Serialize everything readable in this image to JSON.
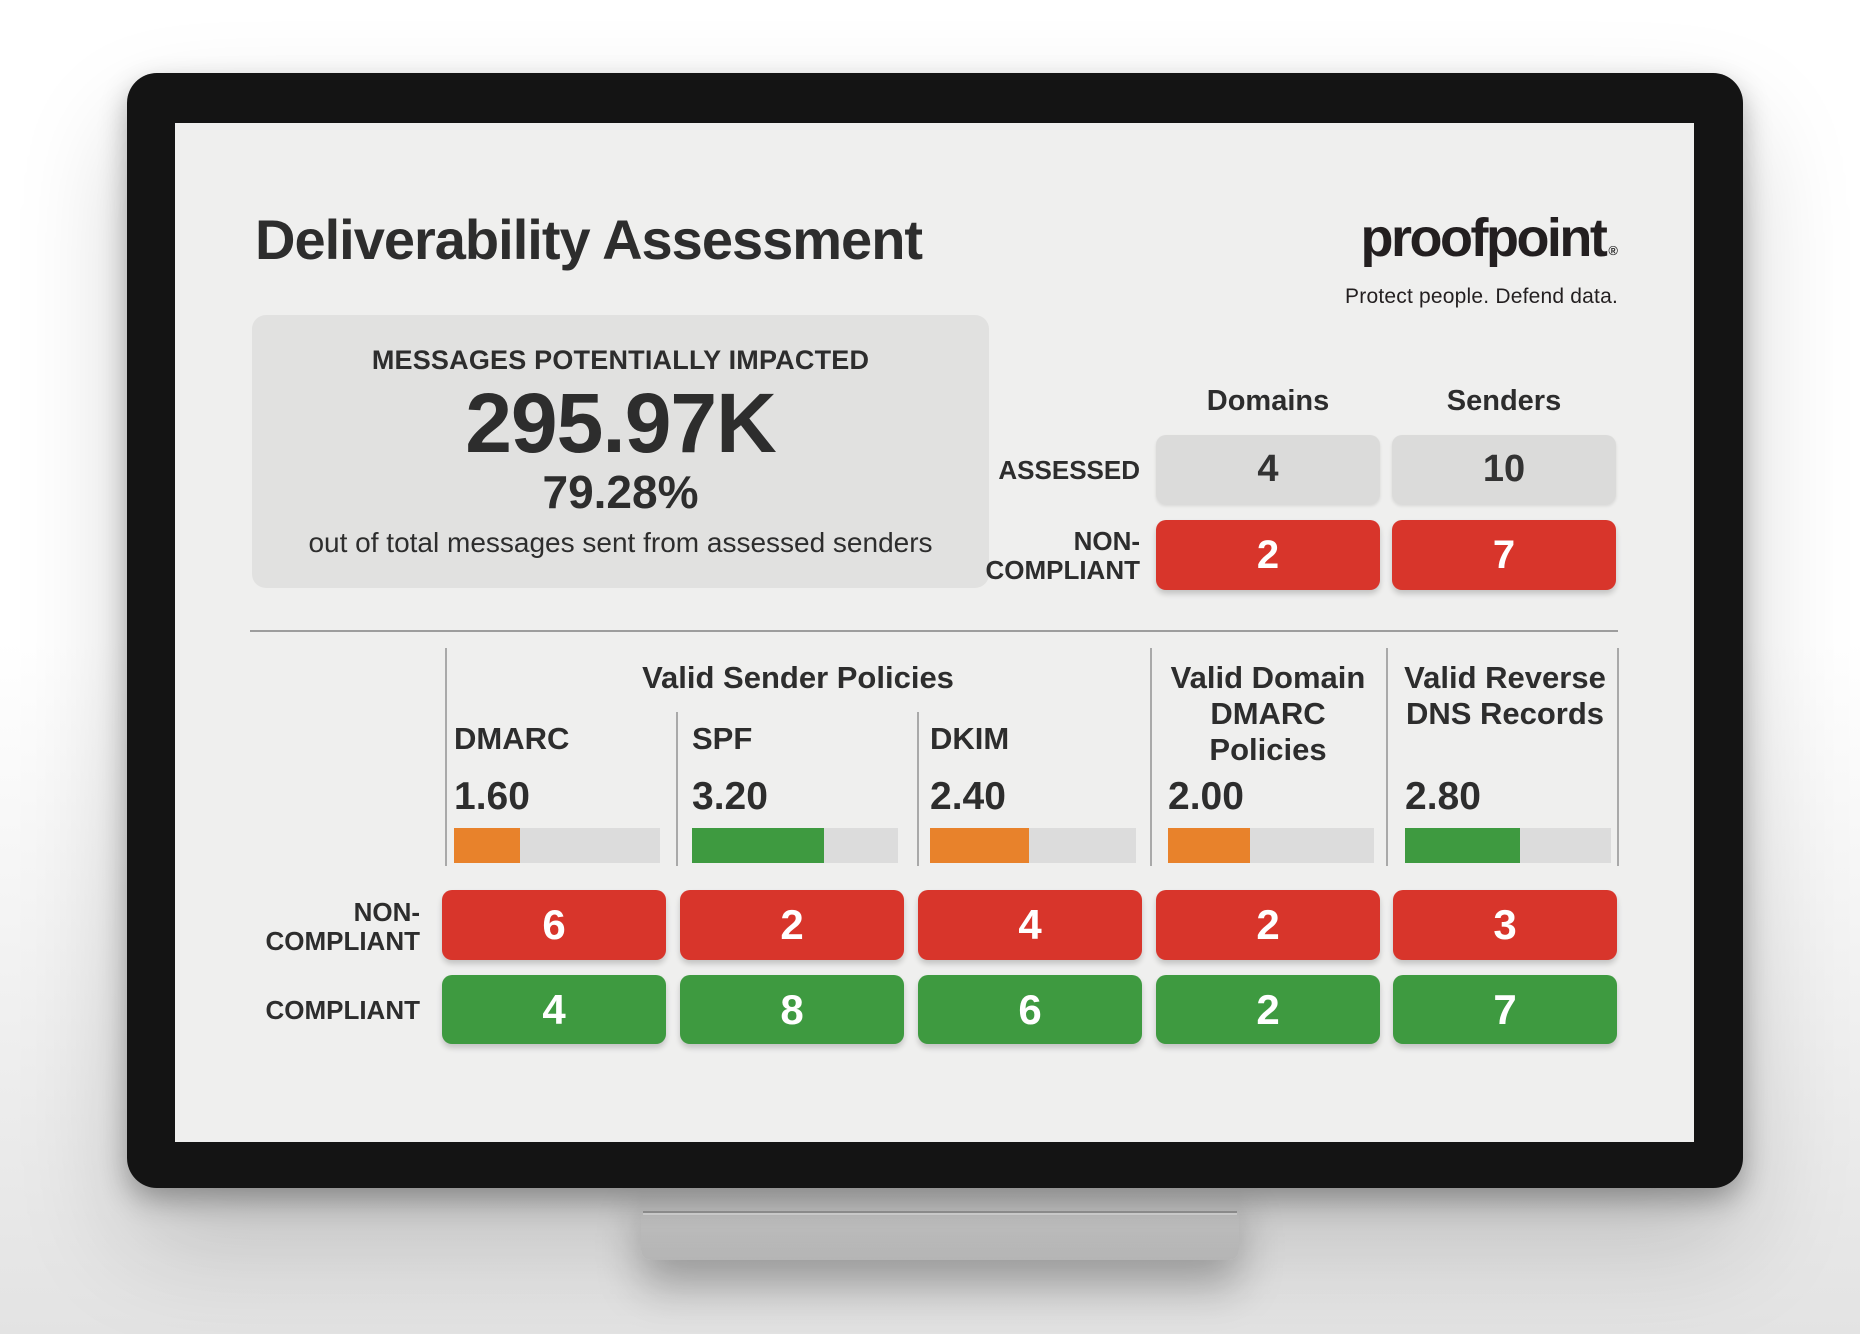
{
  "header": {
    "title": "Deliverability Assessment",
    "logo": {
      "brand": "proofpoint",
      "registered": "®",
      "tagline": "Protect people. Defend data."
    }
  },
  "impact_card": {
    "label": "MESSAGES POTENTIALLY IMPACTED",
    "value": "295.97K",
    "percent": "79.28%",
    "caption": "out of total messages sent from assessed senders"
  },
  "summary": {
    "columns": [
      "Domains",
      "Senders"
    ],
    "rows": [
      {
        "label": "ASSESSED",
        "values": [
          "4",
          "10"
        ],
        "style": "gray"
      },
      {
        "label": "NON-\nCOMPLIANT",
        "values": [
          "2",
          "7"
        ],
        "style": "red"
      }
    ]
  },
  "assessment": {
    "group_header": "Valid Sender Policies",
    "score_max": 5,
    "columns": [
      {
        "label": "DMARC",
        "score": "1.60",
        "score_value": 1.6,
        "fill": "32%",
        "color": "#E8822B"
      },
      {
        "label": "SPF",
        "score": "3.20",
        "score_value": 3.2,
        "fill": "64%",
        "color": "#3E9A40"
      },
      {
        "label": "DKIM",
        "score": "2.40",
        "score_value": 2.4,
        "fill": "48%",
        "color": "#E8822B"
      },
      {
        "label": "Valid Domain\nDMARC\nPolicies",
        "score": "2.00",
        "score_value": 2.0,
        "fill": "40%",
        "color": "#E8822B"
      },
      {
        "label": "Valid Reverse\nDNS Records",
        "score": "2.80",
        "score_value": 2.8,
        "fill": "56%",
        "color": "#3E9A40"
      }
    ],
    "rows": [
      {
        "label": "NON-\nCOMPLIANT",
        "values": [
          "6",
          "2",
          "4",
          "2",
          "3"
        ],
        "color": "#D8352B"
      },
      {
        "label": "COMPLIANT",
        "values": [
          "4",
          "8",
          "6",
          "2",
          "7"
        ],
        "color": "#3E9A40"
      }
    ]
  },
  "colors": {
    "red": "#D8352B",
    "green": "#3E9A40",
    "orange": "#E8822B",
    "pill_gray": "#DBDBDA",
    "card_gray": "#E1E1E0",
    "track_gray": "#DCDCDC",
    "screen_bg": "#EFEFEE",
    "text": "#2D2D2D"
  }
}
